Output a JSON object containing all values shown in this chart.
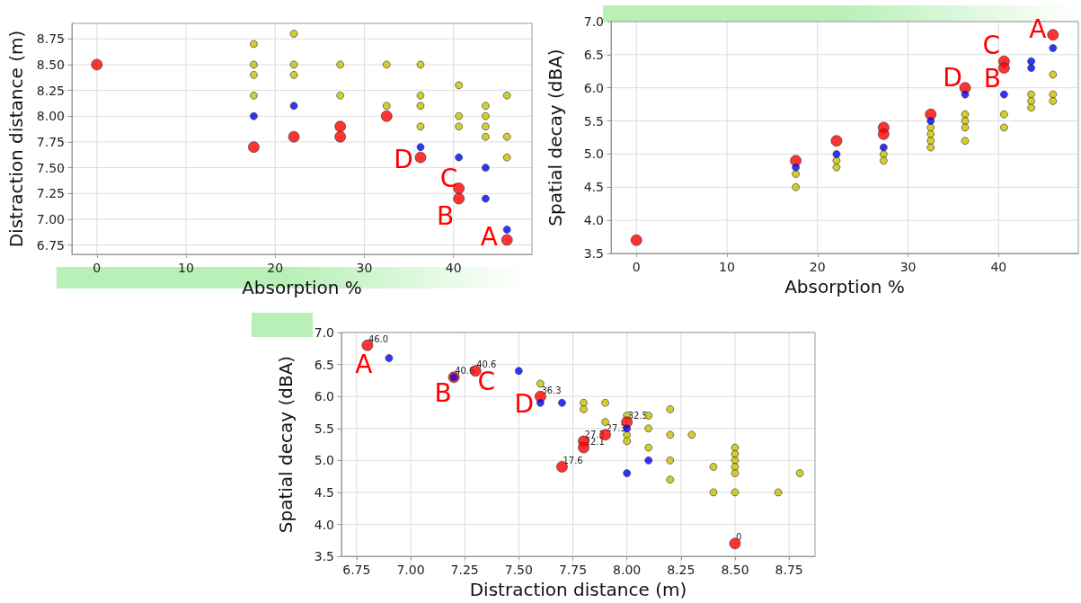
{
  "chart_data": [
    {
      "type": "scatter",
      "xlabel": "Absorption %",
      "ylabel": "Distraction distance (m)",
      "xlim": [
        -2.8,
        48.8
      ],
      "ylim": [
        6.66,
        8.9
      ],
      "xticks": [
        0,
        10,
        20,
        30,
        40
      ],
      "yticks": [
        {
          "value": 6.75,
          "label": "6.75"
        },
        {
          "value": 7,
          "label": "7.00"
        },
        {
          "value": 7.25,
          "label": "7.25"
        },
        {
          "value": 7.5,
          "label": "7.50"
        },
        {
          "value": 7.75,
          "label": "7.75"
        },
        {
          "value": 8,
          "label": "8.00"
        },
        {
          "value": 8.25,
          "label": "8.25"
        },
        {
          "value": 8.5,
          "label": "8.50"
        },
        {
          "value": 8.75,
          "label": "8.75"
        }
      ],
      "grid": true,
      "marker": "circle",
      "series": [
        {
          "color": "#c8c000",
          "x": [
            17.6,
            17.6,
            17.6,
            17.6,
            22.1,
            22.1,
            22.1,
            27.3,
            27.3,
            32.5,
            32.5,
            36.3,
            36.3,
            36.3,
            36.3,
            40.6,
            40.6,
            40.6,
            43.6,
            43.6,
            43.6,
            43.6,
            46,
            46,
            46
          ],
          "values": [
            8.7,
            8.5,
            8.4,
            8.2,
            8.8,
            8.5,
            8.4,
            8.5,
            8.2,
            8.5,
            8.1,
            8.5,
            8.2,
            8.1,
            7.9,
            8.3,
            8.0,
            7.9,
            8.1,
            8.0,
            7.9,
            7.8,
            8.2,
            7.8,
            7.6
          ]
        },
        {
          "color": "#ff0000",
          "x": [
            0,
            17.6,
            22.1,
            27.3,
            27.3,
            32.5,
            36.3,
            40.6,
            40.6,
            46
          ],
          "values": [
            8.5,
            7.7,
            7.8,
            7.9,
            7.8,
            8.0,
            7.6,
            7.3,
            7.2,
            6.8
          ]
        },
        {
          "color": "#0000ff",
          "x": [
            17.6,
            22.1,
            36.3,
            40.6,
            43.6,
            43.6,
            46
          ],
          "values": [
            8.0,
            8.1,
            7.7,
            7.6,
            7.5,
            7.2,
            6.9
          ]
        }
      ],
      "annotations": [
        {
          "text": "A",
          "x": 46,
          "y": 6.8
        },
        {
          "text": "B",
          "x": 40.6,
          "y": 7.2
        },
        {
          "text": "C",
          "x": 40.6,
          "y": 7.3
        },
        {
          "text": "D",
          "x": 36.3,
          "y": 7.6
        }
      ]
    },
    {
      "type": "scatter",
      "xlabel": "Absorption %",
      "ylabel": "Spatial decay (dBA)",
      "xlim": [
        -2.8,
        48.8
      ],
      "ylim": [
        3.5,
        7.0
      ],
      "xticks": [
        0,
        10,
        20,
        30,
        40
      ],
      "yticks": [
        {
          "value": 3.5,
          "label": "3.5"
        },
        {
          "value": 4,
          "label": "4.0"
        },
        {
          "value": 4.5,
          "label": "4.5"
        },
        {
          "value": 5,
          "label": "5.0"
        },
        {
          "value": 5.5,
          "label": "5.5"
        },
        {
          "value": 6,
          "label": "6.0"
        },
        {
          "value": 6.5,
          "label": "6.5"
        },
        {
          "value": 7,
          "label": "7.0"
        }
      ],
      "grid": true,
      "marker": "circle",
      "series": [
        {
          "color": "#c8c000",
          "x": [
            17.6,
            17.6,
            22.1,
            22.1,
            27.3,
            27.3,
            32.5,
            32.5,
            32.5,
            32.5,
            36.3,
            36.3,
            36.3,
            36.3,
            40.6,
            40.6,
            43.6,
            43.6,
            43.6,
            46,
            46,
            46
          ],
          "values": [
            4.7,
            4.5,
            4.9,
            4.8,
            5.0,
            4.9,
            5.4,
            5.3,
            5.2,
            5.1,
            5.6,
            5.5,
            5.4,
            5.2,
            5.6,
            5.4,
            5.9,
            5.8,
            5.7,
            6.2,
            5.9,
            5.8
          ]
        },
        {
          "color": "#ff0000",
          "x": [
            0,
            17.6,
            22.1,
            27.3,
            27.3,
            32.5,
            36.3,
            40.6,
            40.6,
            46
          ],
          "values": [
            3.7,
            4.9,
            5.2,
            5.4,
            5.3,
            5.6,
            6.0,
            6.4,
            6.3,
            6.8
          ]
        },
        {
          "color": "#0000ff",
          "x": [
            17.6,
            22.1,
            27.3,
            32.5,
            36.3,
            40.6,
            43.6,
            43.6,
            46
          ],
          "values": [
            4.8,
            5.0,
            5.1,
            5.5,
            5.9,
            5.9,
            6.4,
            6.3,
            6.6
          ]
        }
      ],
      "annotations": [
        {
          "text": "A",
          "x": 46,
          "y": 6.8
        },
        {
          "text": "C",
          "x": 40.6,
          "y": 6.4
        },
        {
          "text": "B",
          "x": 40.6,
          "y": 6.3
        },
        {
          "text": "D",
          "x": 36.3,
          "y": 6.0
        }
      ]
    },
    {
      "type": "scatter",
      "xlabel": "Distraction distance (m)",
      "ylabel": "Spatial decay (dBA)",
      "xlim": [
        6.68,
        8.87
      ],
      "ylim": [
        3.5,
        7.0
      ],
      "xticks": [
        {
          "value": 6.75,
          "label": "6.75"
        },
        {
          "value": 7,
          "label": "7.00"
        },
        {
          "value": 7.25,
          "label": "7.25"
        },
        {
          "value": 7.5,
          "label": "7.50"
        },
        {
          "value": 7.75,
          "label": "7.75"
        },
        {
          "value": 8,
          "label": "8.00"
        },
        {
          "value": 8.25,
          "label": "8.25"
        },
        {
          "value": 8.5,
          "label": "8.50"
        },
        {
          "value": 8.75,
          "label": "8.75"
        }
      ],
      "yticks": [
        {
          "value": 3.5,
          "label": "3.5"
        },
        {
          "value": 4,
          "label": "4.0"
        },
        {
          "value": 4.5,
          "label": "4.5"
        },
        {
          "value": 5,
          "label": "5.0"
        },
        {
          "value": 5.5,
          "label": "5.5"
        },
        {
          "value": 6,
          "label": "6.0"
        },
        {
          "value": 6.5,
          "label": "6.5"
        },
        {
          "value": 7,
          "label": "7.0"
        }
      ],
      "grid": true,
      "marker": "circle",
      "series": [
        {
          "color": "#c8c000",
          "x": [
            7.6,
            7.8,
            7.8,
            7.9,
            7.9,
            8.0,
            8.0,
            8.0,
            8.1,
            8.1,
            8.1,
            8.2,
            8.2,
            8.2,
            8.2,
            8.3,
            8.4,
            8.4,
            8.5,
            8.5,
            8.5,
            8.5,
            8.5,
            8.5,
            8.7,
            8.8
          ],
          "values": [
            6.2,
            5.9,
            5.8,
            5.9,
            5.6,
            5.7,
            5.4,
            5.3,
            5.7,
            5.5,
            5.2,
            5.8,
            5.4,
            5.0,
            4.7,
            5.4,
            4.9,
            4.5,
            5.2,
            5.1,
            5.0,
            4.9,
            4.8,
            4.5,
            4.5,
            4.8
          ]
        },
        {
          "color": "#ff0000",
          "x": [
            6.8,
            7.2,
            7.3,
            7.6,
            8.0,
            7.9,
            7.8,
            7.8,
            7.7,
            8.5
          ],
          "values": [
            6.8,
            6.3,
            6.4,
            6.0,
            5.6,
            5.4,
            5.3,
            5.2,
            4.9,
            3.7
          ]
        },
        {
          "color": "#0000ff",
          "x": [
            6.9,
            7.2,
            7.5,
            7.6,
            7.7,
            8.0,
            8.1,
            8.0
          ],
          "values": [
            6.6,
            6.3,
            6.4,
            5.9,
            5.9,
            5.5,
            5.0,
            4.8
          ]
        }
      ],
      "annotations": [
        {
          "text": "A",
          "x": 6.8,
          "y": 6.8
        },
        {
          "text": "B",
          "x": 7.2,
          "y": 6.3
        },
        {
          "text": "C",
          "x": 7.3,
          "y": 6.4
        },
        {
          "text": "D",
          "x": 7.6,
          "y": 6.0
        },
        {
          "text": "46.0",
          "x": 6.8,
          "y": 6.8
        },
        {
          "text": "40.6",
          "x": 7.2,
          "y": 6.3
        },
        {
          "text": "40.6",
          "x": 7.3,
          "y": 6.4
        },
        {
          "text": "36.3",
          "x": 7.6,
          "y": 6.0
        },
        {
          "text": "32.5",
          "x": 8.0,
          "y": 5.6
        },
        {
          "text": "27.3",
          "x": 7.9,
          "y": 5.4
        },
        {
          "text": "27.3",
          "x": 7.8,
          "y": 5.3
        },
        {
          "text": "22.1",
          "x": 7.8,
          "y": 5.2
        },
        {
          "text": "17.6",
          "x": 7.7,
          "y": 4.9
        },
        {
          "text": "0",
          "x": 8.5,
          "y": 3.7
        }
      ]
    }
  ]
}
